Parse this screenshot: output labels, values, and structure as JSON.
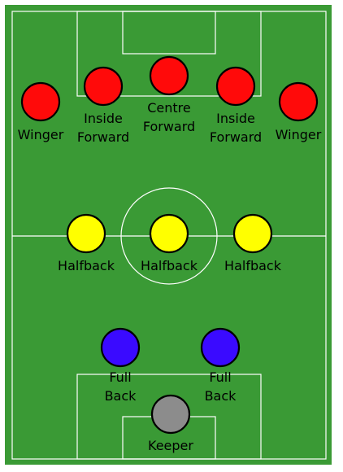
{
  "pitch": {
    "grass_color": "#3a9a35",
    "line_color": "#ffffff"
  },
  "formation": {
    "forwards": {
      "color": "#ff0a0a",
      "players": [
        {
          "id": "winger-left",
          "label_lines": [
            "Winger"
          ]
        },
        {
          "id": "inside-forward-left",
          "label_lines": [
            "Inside",
            "Forward"
          ]
        },
        {
          "id": "centre-forward",
          "label_lines": [
            "Centre",
            "Forward"
          ]
        },
        {
          "id": "inside-forward-right",
          "label_lines": [
            "Inside",
            "Forward"
          ]
        },
        {
          "id": "winger-right",
          "label_lines": [
            "Winger"
          ]
        }
      ]
    },
    "halfbacks": {
      "color": "#ffff00",
      "players": [
        {
          "id": "halfback-left",
          "label_lines": [
            "Halfback"
          ]
        },
        {
          "id": "halfback-centre",
          "label_lines": [
            "Halfback"
          ]
        },
        {
          "id": "halfback-right",
          "label_lines": [
            "Halfback"
          ]
        }
      ]
    },
    "fullbacks": {
      "color": "#3a0aff",
      "players": [
        {
          "id": "full-back-left",
          "label_lines": [
            "Full",
            "Back"
          ]
        },
        {
          "id": "full-back-right",
          "label_lines": [
            "Full",
            "Back"
          ]
        }
      ]
    },
    "keeper": {
      "color": "#8c8c8c",
      "players": [
        {
          "id": "keeper",
          "label_lines": [
            "Keeper"
          ]
        }
      ]
    }
  }
}
